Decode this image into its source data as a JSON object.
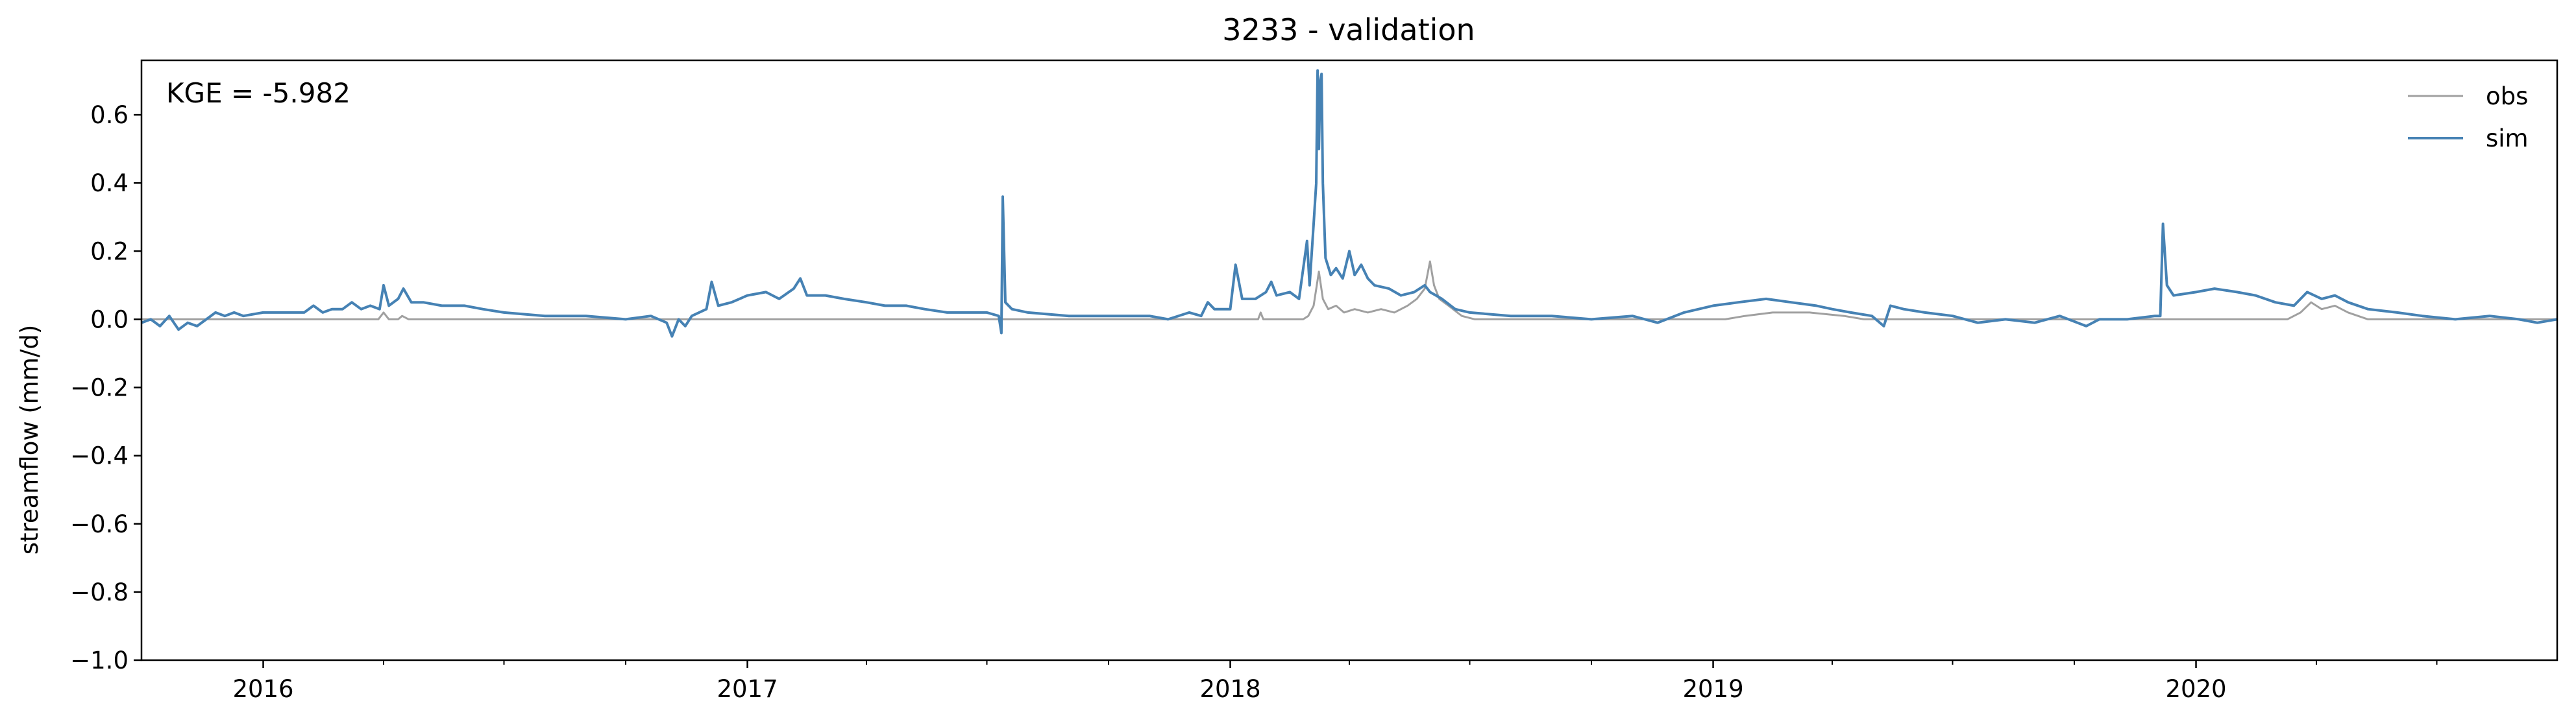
{
  "chart_data": {
    "type": "line",
    "title": "3233 - validation",
    "xlabel": "",
    "ylabel": "streamflow (mm/d)",
    "annotation": "KGE = -5.982",
    "x_range": [
      "2015-10-01",
      "2020-09-30"
    ],
    "ylim": [
      -1.0,
      0.76
    ],
    "y_ticks": [
      -1.0,
      -0.8,
      -0.6,
      -0.4,
      -0.2,
      0.0,
      0.2,
      0.4,
      0.6
    ],
    "y_tick_labels": [
      "−1.0",
      "−0.8",
      "−0.6",
      "−0.4",
      "−0.2",
      "0.0",
      "0.2",
      "0.4",
      "0.6"
    ],
    "x_ticks": [
      "2016-01-01",
      "2017-01-01",
      "2018-01-01",
      "2019-01-01",
      "2020-01-01"
    ],
    "x_tick_labels": [
      "2016",
      "2017",
      "2018",
      "2019",
      "2020"
    ],
    "grid": false,
    "legend_position": "top-right",
    "series": [
      {
        "name": "obs",
        "color": "#a0a0a0",
        "points": [
          [
            "2015-10-01",
            0.0
          ],
          [
            "2016-03-28",
            0.0
          ],
          [
            "2016-04-01",
            0.02
          ],
          [
            "2016-04-05",
            0.0
          ],
          [
            "2016-04-12",
            0.0
          ],
          [
            "2016-04-15",
            0.01
          ],
          [
            "2016-04-20",
            0.0
          ],
          [
            "2017-01-01",
            0.0
          ],
          [
            "2017-09-01",
            0.0
          ],
          [
            "2018-01-22",
            0.0
          ],
          [
            "2018-01-24",
            0.02
          ],
          [
            "2018-01-26",
            0.0
          ],
          [
            "2018-02-25",
            0.0
          ],
          [
            "2018-03-01",
            0.01
          ],
          [
            "2018-03-05",
            0.04
          ],
          [
            "2018-03-09",
            0.14
          ],
          [
            "2018-03-12",
            0.06
          ],
          [
            "2018-03-16",
            0.03
          ],
          [
            "2018-03-22",
            0.04
          ],
          [
            "2018-03-28",
            0.02
          ],
          [
            "2018-04-05",
            0.03
          ],
          [
            "2018-04-15",
            0.02
          ],
          [
            "2018-04-25",
            0.03
          ],
          [
            "2018-05-05",
            0.02
          ],
          [
            "2018-05-15",
            0.04
          ],
          [
            "2018-05-22",
            0.06
          ],
          [
            "2018-05-28",
            0.09
          ],
          [
            "2018-06-01",
            0.17
          ],
          [
            "2018-06-04",
            0.1
          ],
          [
            "2018-06-08",
            0.06
          ],
          [
            "2018-06-15",
            0.04
          ],
          [
            "2018-06-25",
            0.01
          ],
          [
            "2018-07-05",
            0.0
          ],
          [
            "2019-01-10",
            0.0
          ],
          [
            "2019-01-25",
            0.01
          ],
          [
            "2019-02-15",
            0.02
          ],
          [
            "2019-03-15",
            0.02
          ],
          [
            "2019-04-10",
            0.01
          ],
          [
            "2019-04-25",
            0.0
          ],
          [
            "2020-03-10",
            0.0
          ],
          [
            "2020-03-20",
            0.02
          ],
          [
            "2020-03-28",
            0.05
          ],
          [
            "2020-04-05",
            0.03
          ],
          [
            "2020-04-15",
            0.04
          ],
          [
            "2020-04-25",
            0.02
          ],
          [
            "2020-05-10",
            0.0
          ],
          [
            "2020-09-30",
            0.0
          ]
        ]
      },
      {
        "name": "sim",
        "color": "#4682b4",
        "points": [
          [
            "2015-10-01",
            -0.01
          ],
          [
            "2015-10-08",
            0.0
          ],
          [
            "2015-10-15",
            -0.02
          ],
          [
            "2015-10-22",
            0.01
          ],
          [
            "2015-10-29",
            -0.03
          ],
          [
            "2015-11-05",
            -0.01
          ],
          [
            "2015-11-12",
            -0.02
          ],
          [
            "2015-11-19",
            0.0
          ],
          [
            "2015-11-26",
            0.02
          ],
          [
            "2015-12-03",
            0.01
          ],
          [
            "2015-12-10",
            0.02
          ],
          [
            "2015-12-17",
            0.01
          ],
          [
            "2016-01-01",
            0.02
          ],
          [
            "2016-01-15",
            0.02
          ],
          [
            "2016-02-01",
            0.02
          ],
          [
            "2016-02-08",
            0.04
          ],
          [
            "2016-02-15",
            0.02
          ],
          [
            "2016-02-22",
            0.03
          ],
          [
            "2016-03-01",
            0.03
          ],
          [
            "2016-03-08",
            0.05
          ],
          [
            "2016-03-15",
            0.03
          ],
          [
            "2016-03-22",
            0.04
          ],
          [
            "2016-03-29",
            0.03
          ],
          [
            "2016-04-01",
            0.1
          ],
          [
            "2016-04-05",
            0.04
          ],
          [
            "2016-04-12",
            0.06
          ],
          [
            "2016-04-16",
            0.09
          ],
          [
            "2016-04-22",
            0.05
          ],
          [
            "2016-05-01",
            0.05
          ],
          [
            "2016-05-15",
            0.04
          ],
          [
            "2016-06-01",
            0.04
          ],
          [
            "2016-06-15",
            0.03
          ],
          [
            "2016-07-01",
            0.02
          ],
          [
            "2016-08-01",
            0.01
          ],
          [
            "2016-09-01",
            0.01
          ],
          [
            "2016-10-01",
            0.0
          ],
          [
            "2016-10-20",
            0.01
          ],
          [
            "2016-11-01",
            -0.01
          ],
          [
            "2016-11-05",
            -0.05
          ],
          [
            "2016-11-10",
            0.0
          ],
          [
            "2016-11-15",
            -0.02
          ],
          [
            "2016-11-20",
            0.01
          ],
          [
            "2016-12-01",
            0.03
          ],
          [
            "2016-12-05",
            0.11
          ],
          [
            "2016-12-10",
            0.04
          ],
          [
            "2016-12-20",
            0.05
          ],
          [
            "2017-01-01",
            0.07
          ],
          [
            "2017-01-15",
            0.08
          ],
          [
            "2017-01-25",
            0.06
          ],
          [
            "2017-02-05",
            0.09
          ],
          [
            "2017-02-10",
            0.12
          ],
          [
            "2017-02-15",
            0.07
          ],
          [
            "2017-03-01",
            0.07
          ],
          [
            "2017-03-15",
            0.06
          ],
          [
            "2017-04-01",
            0.05
          ],
          [
            "2017-04-15",
            0.04
          ],
          [
            "2017-05-01",
            0.04
          ],
          [
            "2017-05-15",
            0.03
          ],
          [
            "2017-06-01",
            0.02
          ],
          [
            "2017-06-15",
            0.02
          ],
          [
            "2017-07-01",
            0.02
          ],
          [
            "2017-07-10",
            0.01
          ],
          [
            "2017-07-12",
            -0.04
          ],
          [
            "2017-07-13",
            0.36
          ],
          [
            "2017-07-15",
            0.05
          ],
          [
            "2017-07-20",
            0.03
          ],
          [
            "2017-08-01",
            0.02
          ],
          [
            "2017-09-01",
            0.01
          ],
          [
            "2017-10-01",
            0.01
          ],
          [
            "2017-11-01",
            0.01
          ],
          [
            "2017-11-15",
            0.0
          ],
          [
            "2017-12-01",
            0.02
          ],
          [
            "2017-12-10",
            0.01
          ],
          [
            "2017-12-15",
            0.05
          ],
          [
            "2017-12-20",
            0.03
          ],
          [
            "2018-01-01",
            0.03
          ],
          [
            "2018-01-05",
            0.16
          ],
          [
            "2018-01-10",
            0.06
          ],
          [
            "2018-01-20",
            0.06
          ],
          [
            "2018-01-28",
            0.08
          ],
          [
            "2018-02-01",
            0.11
          ],
          [
            "2018-02-05",
            0.07
          ],
          [
            "2018-02-15",
            0.08
          ],
          [
            "2018-02-22",
            0.06
          ],
          [
            "2018-02-28",
            0.23
          ],
          [
            "2018-03-02",
            0.1
          ],
          [
            "2018-03-05",
            0.28
          ],
          [
            "2018-03-07",
            0.4
          ],
          [
            "2018-03-08",
            0.73
          ],
          [
            "2018-03-09",
            0.5
          ],
          [
            "2018-03-10",
            0.7
          ],
          [
            "2018-03-11",
            0.72
          ],
          [
            "2018-03-12",
            0.4
          ],
          [
            "2018-03-14",
            0.18
          ],
          [
            "2018-03-18",
            0.13
          ],
          [
            "2018-03-22",
            0.15
          ],
          [
            "2018-03-27",
            0.12
          ],
          [
            "2018-04-01",
            0.2
          ],
          [
            "2018-04-05",
            0.13
          ],
          [
            "2018-04-10",
            0.16
          ],
          [
            "2018-04-15",
            0.12
          ],
          [
            "2018-04-20",
            0.1
          ],
          [
            "2018-05-01",
            0.09
          ],
          [
            "2018-05-10",
            0.07
          ],
          [
            "2018-05-20",
            0.08
          ],
          [
            "2018-05-28",
            0.1
          ],
          [
            "2018-06-01",
            0.08
          ],
          [
            "2018-06-10",
            0.06
          ],
          [
            "2018-06-20",
            0.03
          ],
          [
            "2018-07-01",
            0.02
          ],
          [
            "2018-08-01",
            0.01
          ],
          [
            "2018-09-01",
            0.01
          ],
          [
            "2018-10-01",
            0.0
          ],
          [
            "2018-11-01",
            0.01
          ],
          [
            "2018-11-20",
            -0.01
          ],
          [
            "2018-12-10",
            0.02
          ],
          [
            "2019-01-01",
            0.04
          ],
          [
            "2019-01-20",
            0.05
          ],
          [
            "2019-02-10",
            0.06
          ],
          [
            "2019-03-01",
            0.05
          ],
          [
            "2019-03-20",
            0.04
          ],
          [
            "2019-04-01",
            0.03
          ],
          [
            "2019-04-15",
            0.02
          ],
          [
            "2019-05-01",
            0.01
          ],
          [
            "2019-05-10",
            -0.02
          ],
          [
            "2019-05-15",
            0.04
          ],
          [
            "2019-05-25",
            0.03
          ],
          [
            "2019-06-10",
            0.02
          ],
          [
            "2019-07-01",
            0.01
          ],
          [
            "2019-07-20",
            -0.01
          ],
          [
            "2019-08-10",
            0.0
          ],
          [
            "2019-09-01",
            -0.01
          ],
          [
            "2019-09-20",
            0.01
          ],
          [
            "2019-10-10",
            -0.02
          ],
          [
            "2019-10-20",
            0.0
          ],
          [
            "2019-11-10",
            0.0
          ],
          [
            "2019-12-01",
            0.01
          ],
          [
            "2019-12-05",
            0.01
          ],
          [
            "2019-12-07",
            0.28
          ],
          [
            "2019-12-10",
            0.1
          ],
          [
            "2019-12-15",
            0.07
          ],
          [
            "2020-01-01",
            0.08
          ],
          [
            "2020-01-15",
            0.09
          ],
          [
            "2020-02-01",
            0.08
          ],
          [
            "2020-02-15",
            0.07
          ],
          [
            "2020-03-01",
            0.05
          ],
          [
            "2020-03-15",
            0.04
          ],
          [
            "2020-03-25",
            0.08
          ],
          [
            "2020-04-05",
            0.06
          ],
          [
            "2020-04-15",
            0.07
          ],
          [
            "2020-04-25",
            0.05
          ],
          [
            "2020-05-10",
            0.03
          ],
          [
            "2020-06-01",
            0.02
          ],
          [
            "2020-06-20",
            0.01
          ],
          [
            "2020-07-15",
            0.0
          ],
          [
            "2020-08-10",
            0.01
          ],
          [
            "2020-09-01",
            0.0
          ],
          [
            "2020-09-15",
            -0.01
          ],
          [
            "2020-09-30",
            0.0
          ]
        ]
      }
    ]
  }
}
